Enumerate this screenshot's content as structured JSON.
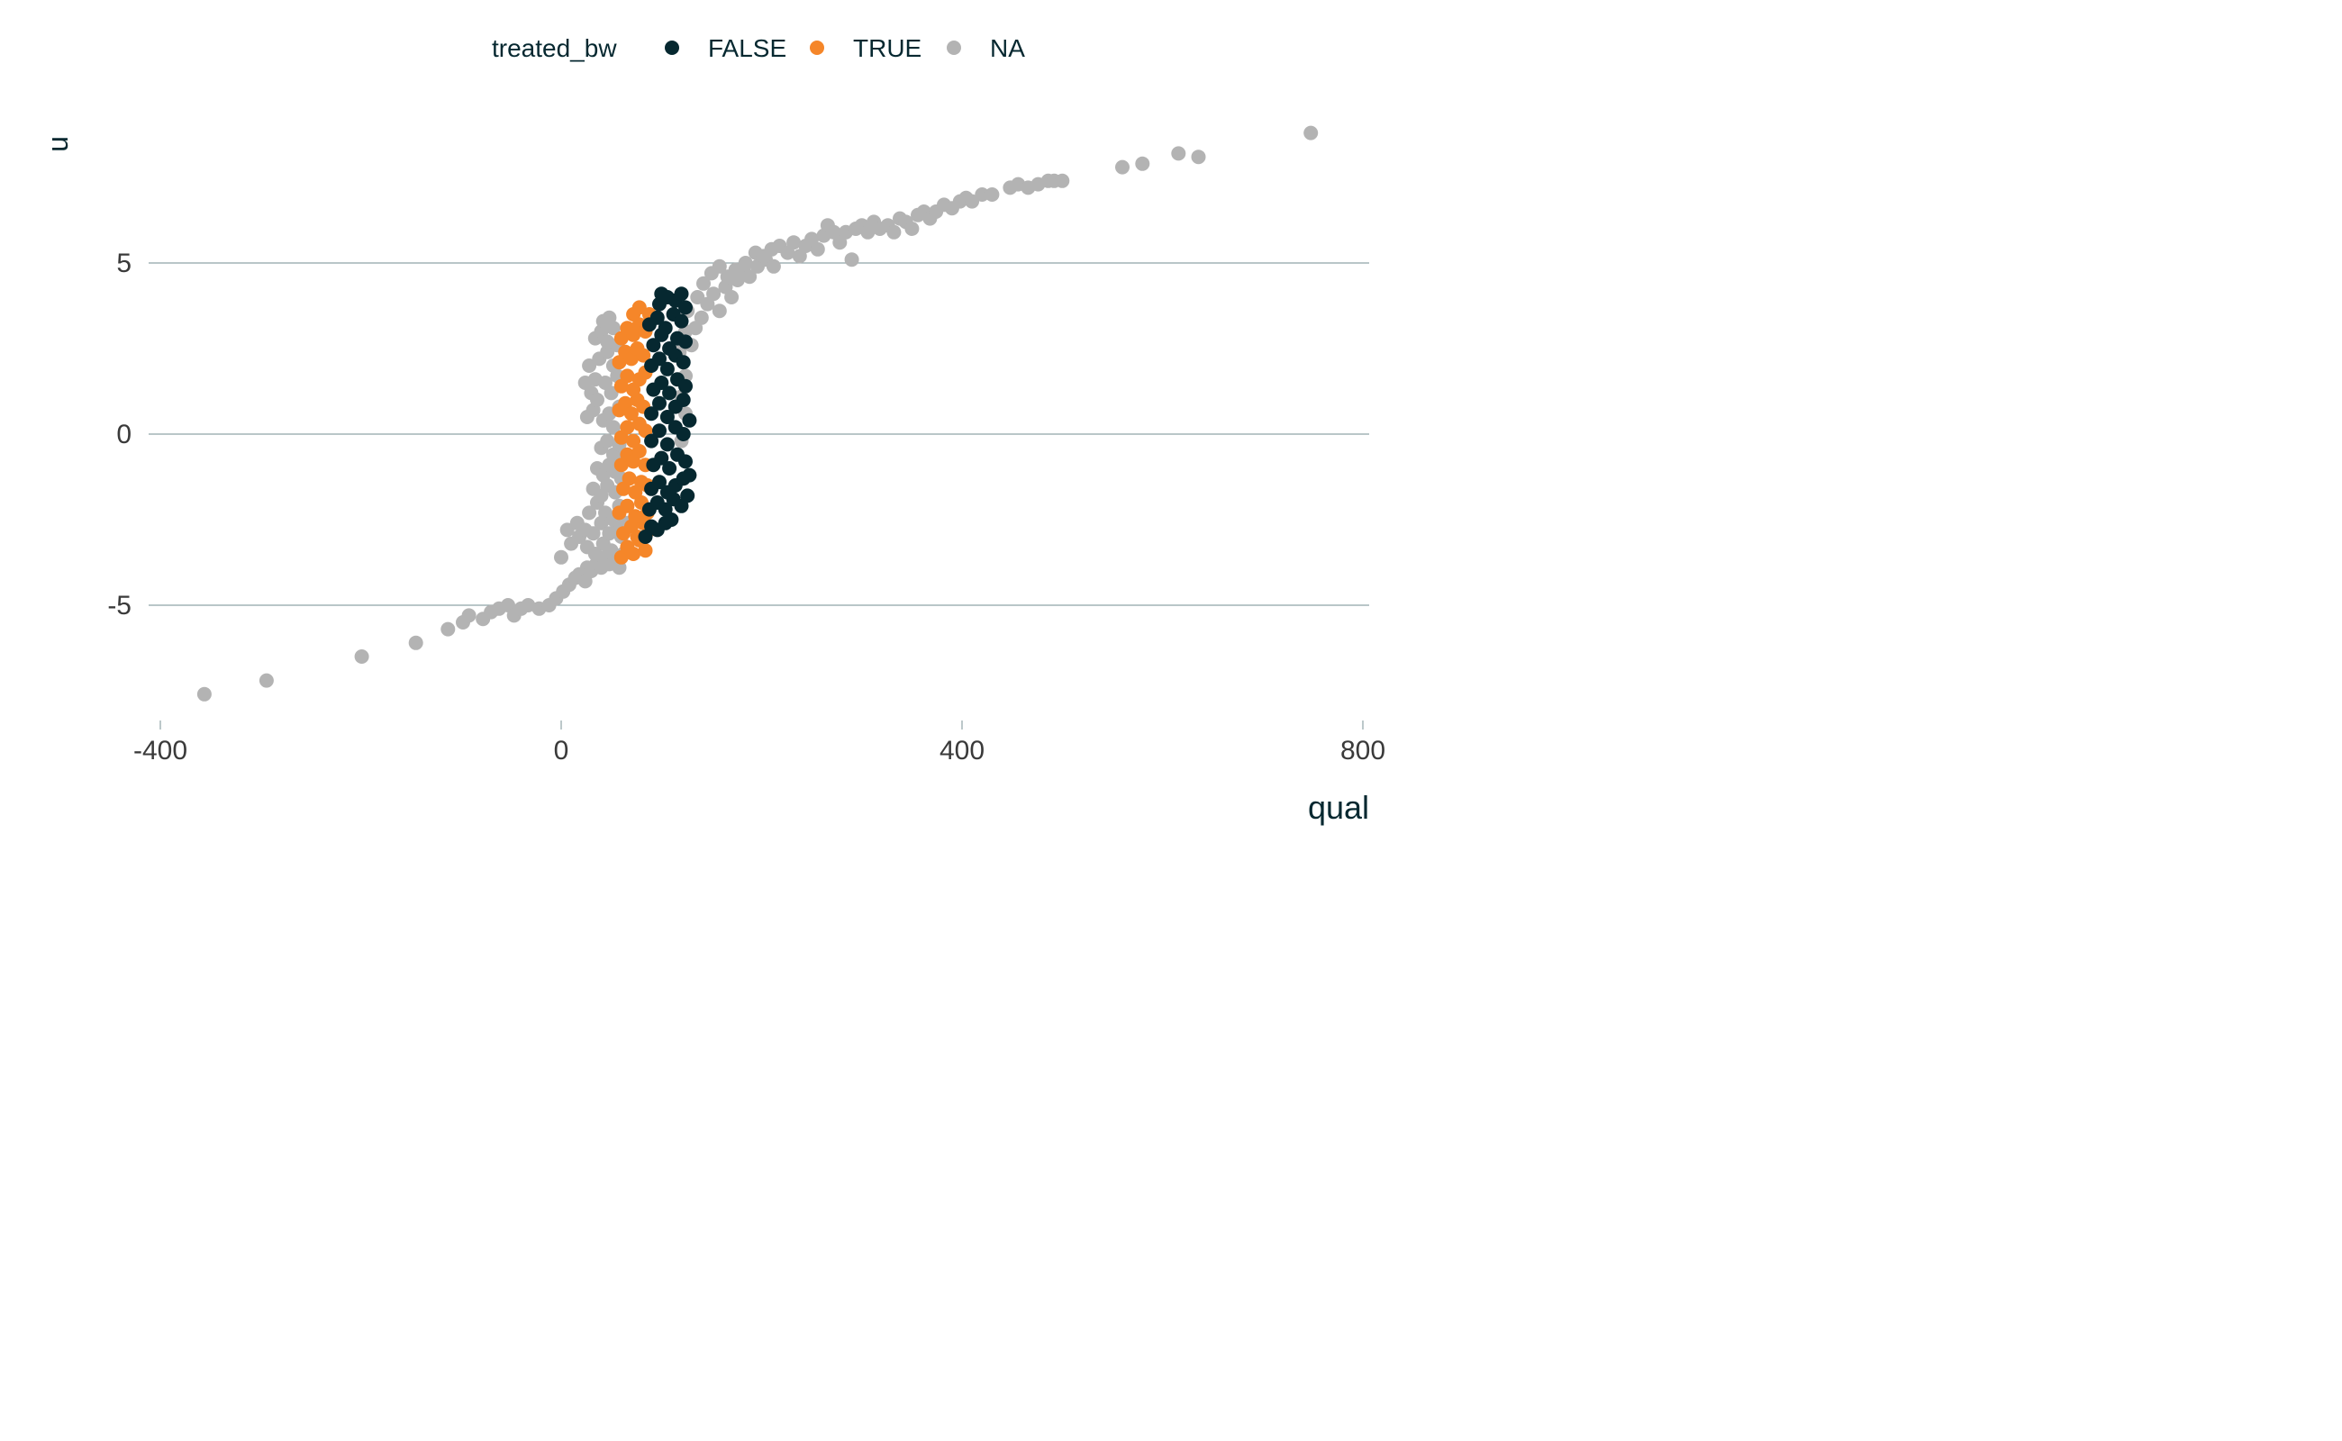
{
  "chart_data": {
    "type": "scatter",
    "title": "",
    "xlabel": "qual",
    "ylabel": "u",
    "xlim": [
      -400,
      800
    ],
    "ylim": [
      -7.5,
      8.5
    ],
    "x_ticks": [
      -400,
      0,
      400,
      800
    ],
    "y_ticks": [
      -5,
      0,
      5
    ],
    "x_tick_labels": [
      "-400",
      "0",
      "400",
      "800"
    ],
    "y_tick_labels": [
      "-5",
      "0",
      "5"
    ],
    "grid": "horizontal major",
    "legend": {
      "title": "treated_bw",
      "placement": "top",
      "entries": [
        {
          "label": "FALSE",
          "color": "#062830"
        },
        {
          "label": "TRUE",
          "color": "#f58629"
        },
        {
          "label": "NA",
          "color": "#b3b3b3"
        }
      ]
    },
    "series": [
      {
        "name": "NA",
        "color": "#b3b3b3",
        "points": [
          [
            -356,
            -7.6
          ],
          [
            -294,
            -7.2
          ],
          [
            -199,
            -6.5
          ],
          [
            -145,
            -6.1
          ],
          [
            -113,
            -5.7
          ],
          [
            -98,
            -5.5
          ],
          [
            -92,
            -5.3
          ],
          [
            -78,
            -5.4
          ],
          [
            -70,
            -5.2
          ],
          [
            -62,
            -5.1
          ],
          [
            -53,
            -5.0
          ],
          [
            -47,
            -5.3
          ],
          [
            -40,
            -5.1
          ],
          [
            -33,
            -5.0
          ],
          [
            -22,
            -5.1
          ],
          [
            -12,
            -5.0
          ],
          [
            -5,
            -4.8
          ],
          [
            2,
            -4.6
          ],
          [
            8,
            -4.4
          ],
          [
            14,
            -4.2
          ],
          [
            18,
            -4.1
          ],
          [
            24,
            -4.3
          ],
          [
            26,
            -3.9
          ],
          [
            30,
            -4.0
          ],
          [
            35,
            -3.8
          ],
          [
            40,
            -3.9
          ],
          [
            44,
            -3.6
          ],
          [
            48,
            -3.8
          ],
          [
            53,
            -3.7
          ],
          [
            58,
            -3.9
          ],
          [
            62,
            -3.5
          ],
          [
            0,
            -3.6
          ],
          [
            10,
            -3.2
          ],
          [
            18,
            -3.0
          ],
          [
            26,
            -3.3
          ],
          [
            34,
            -3.5
          ],
          [
            42,
            -3.2
          ],
          [
            50,
            -3.4
          ],
          [
            6,
            -2.8
          ],
          [
            16,
            -2.6
          ],
          [
            24,
            -2.8
          ],
          [
            32,
            -2.9
          ],
          [
            40,
            -2.6
          ],
          [
            48,
            -2.9
          ],
          [
            56,
            -2.7
          ],
          [
            60,
            -3.0
          ],
          [
            28,
            -2.3
          ],
          [
            36,
            -2.0
          ],
          [
            44,
            -2.3
          ],
          [
            52,
            -2.5
          ],
          [
            58,
            -2.1
          ],
          [
            66,
            -2.6
          ],
          [
            32,
            -1.6
          ],
          [
            40,
            -1.8
          ],
          [
            46,
            -1.5
          ],
          [
            54,
            -1.7
          ],
          [
            60,
            -1.3
          ],
          [
            36,
            -1.0
          ],
          [
            42,
            -1.2
          ],
          [
            48,
            -0.9
          ],
          [
            54,
            -1.1
          ],
          [
            58,
            -0.6
          ],
          [
            40,
            -0.4
          ],
          [
            46,
            -0.2
          ],
          [
            52,
            -0.6
          ],
          [
            58,
            -0.3
          ],
          [
            42,
            0.4
          ],
          [
            48,
            0.6
          ],
          [
            52,
            0.2
          ],
          [
            58,
            0.8
          ],
          [
            26,
            0.5
          ],
          [
            32,
            0.7
          ],
          [
            30,
            1.2
          ],
          [
            36,
            1.0
          ],
          [
            44,
            1.5
          ],
          [
            50,
            1.2
          ],
          [
            56,
            1.7
          ],
          [
            24,
            1.5
          ],
          [
            28,
            2.0
          ],
          [
            34,
            1.6
          ],
          [
            38,
            2.2
          ],
          [
            46,
            2.4
          ],
          [
            52,
            2.0
          ],
          [
            56,
            2.6
          ],
          [
            34,
            2.8
          ],
          [
            40,
            3.0
          ],
          [
            46,
            2.7
          ],
          [
            52,
            3.1
          ],
          [
            42,
            3.3
          ],
          [
            48,
            3.4
          ],
          [
            120,
            -0.2
          ],
          [
            124,
            0.6
          ],
          [
            120,
            1.1
          ],
          [
            124,
            1.7
          ],
          [
            118,
            2.4
          ],
          [
            124,
            3.0
          ],
          [
            126,
            3.6
          ],
          [
            130,
            2.6
          ],
          [
            134,
            3.1
          ],
          [
            140,
            3.4
          ],
          [
            146,
            3.8
          ],
          [
            152,
            4.1
          ],
          [
            158,
            3.6
          ],
          [
            164,
            4.3
          ],
          [
            170,
            4.0
          ],
          [
            176,
            4.5
          ],
          [
            182,
            4.8
          ],
          [
            188,
            4.6
          ],
          [
            196,
            4.9
          ],
          [
            204,
            5.1
          ],
          [
            212,
            4.9
          ],
          [
            136,
            4.0
          ],
          [
            142,
            4.4
          ],
          [
            150,
            4.7
          ],
          [
            158,
            4.9
          ],
          [
            166,
            4.6
          ],
          [
            174,
            4.8
          ],
          [
            184,
            5.0
          ],
          [
            194,
            5.3
          ],
          [
            202,
            5.2
          ],
          [
            210,
            5.4
          ],
          [
            218,
            5.5
          ],
          [
            226,
            5.3
          ],
          [
            232,
            5.6
          ],
          [
            238,
            5.2
          ],
          [
            244,
            5.5
          ],
          [
            250,
            5.7
          ],
          [
            256,
            5.4
          ],
          [
            262,
            5.8
          ],
          [
            266,
            6.1
          ],
          [
            272,
            5.9
          ],
          [
            278,
            5.6
          ],
          [
            284,
            5.9
          ],
          [
            290,
            5.1
          ],
          [
            294,
            6.0
          ],
          [
            300,
            6.1
          ],
          [
            306,
            5.9
          ],
          [
            312,
            6.2
          ],
          [
            318,
            6.0
          ],
          [
            326,
            6.1
          ],
          [
            332,
            5.9
          ],
          [
            338,
            6.3
          ],
          [
            344,
            6.2
          ],
          [
            350,
            6.0
          ],
          [
            356,
            6.4
          ],
          [
            362,
            6.5
          ],
          [
            368,
            6.3
          ],
          [
            374,
            6.5
          ],
          [
            382,
            6.7
          ],
          [
            390,
            6.6
          ],
          [
            398,
            6.8
          ],
          [
            404,
            6.9
          ],
          [
            410,
            6.8
          ],
          [
            420,
            7.0
          ],
          [
            430,
            7.0
          ],
          [
            448,
            7.2
          ],
          [
            456,
            7.3
          ],
          [
            466,
            7.2
          ],
          [
            476,
            7.3
          ],
          [
            486,
            7.4
          ],
          [
            492,
            7.4
          ],
          [
            500,
            7.4
          ],
          [
            560,
            7.8
          ],
          [
            580,
            7.9
          ],
          [
            616,
            8.2
          ],
          [
            636,
            8.1
          ],
          [
            748,
            8.8
          ]
        ]
      },
      {
        "name": "TRUE",
        "color": "#f58629",
        "points": [
          [
            60,
            -3.6
          ],
          [
            66,
            -3.3
          ],
          [
            72,
            -3.5
          ],
          [
            78,
            -3.1
          ],
          [
            84,
            -3.4
          ],
          [
            62,
            -2.9
          ],
          [
            70,
            -2.7
          ],
          [
            76,
            -3.0
          ],
          [
            82,
            -2.6
          ],
          [
            88,
            -2.8
          ],
          [
            58,
            -2.3
          ],
          [
            66,
            -2.1
          ],
          [
            74,
            -2.4
          ],
          [
            80,
            -2.0
          ],
          [
            86,
            -2.3
          ],
          [
            62,
            -1.6
          ],
          [
            68,
            -1.3
          ],
          [
            74,
            -1.7
          ],
          [
            80,
            -1.4
          ],
          [
            86,
            -1.5
          ],
          [
            60,
            -0.9
          ],
          [
            66,
            -0.6
          ],
          [
            72,
            -0.8
          ],
          [
            78,
            -0.5
          ],
          [
            84,
            -0.9
          ],
          [
            60,
            -0.1
          ],
          [
            66,
            0.2
          ],
          [
            72,
            -0.2
          ],
          [
            78,
            0.3
          ],
          [
            84,
            0.1
          ],
          [
            58,
            0.7
          ],
          [
            64,
            0.9
          ],
          [
            70,
            0.6
          ],
          [
            76,
            1.0
          ],
          [
            82,
            0.8
          ],
          [
            60,
            1.4
          ],
          [
            66,
            1.7
          ],
          [
            72,
            1.3
          ],
          [
            78,
            1.6
          ],
          [
            84,
            1.8
          ],
          [
            58,
            2.1
          ],
          [
            64,
            2.4
          ],
          [
            70,
            2.2
          ],
          [
            76,
            2.5
          ],
          [
            82,
            2.3
          ],
          [
            60,
            2.8
          ],
          [
            66,
            3.1
          ],
          [
            72,
            2.9
          ],
          [
            78,
            3.2
          ],
          [
            84,
            3.0
          ],
          [
            72,
            3.5
          ],
          [
            78,
            3.7
          ],
          [
            88,
            3.5
          ]
        ]
      },
      {
        "name": "FALSE",
        "color": "#062830",
        "points": [
          [
            84,
            -3.0
          ],
          [
            90,
            -2.7
          ],
          [
            96,
            -2.8
          ],
          [
            104,
            -2.6
          ],
          [
            110,
            -2.5
          ],
          [
            88,
            -2.2
          ],
          [
            96,
            -2.0
          ],
          [
            104,
            -2.2
          ],
          [
            112,
            -1.9
          ],
          [
            120,
            -2.1
          ],
          [
            90,
            -1.6
          ],
          [
            98,
            -1.4
          ],
          [
            106,
            -1.7
          ],
          [
            114,
            -1.5
          ],
          [
            122,
            -1.3
          ],
          [
            126,
            -1.8
          ],
          [
            128,
            -1.2
          ],
          [
            92,
            -0.9
          ],
          [
            100,
            -0.7
          ],
          [
            108,
            -1.0
          ],
          [
            116,
            -0.6
          ],
          [
            124,
            -0.8
          ],
          [
            90,
            -0.2
          ],
          [
            98,
            0.1
          ],
          [
            106,
            -0.3
          ],
          [
            114,
            0.2
          ],
          [
            122,
            0.0
          ],
          [
            128,
            0.4
          ],
          [
            90,
            0.6
          ],
          [
            98,
            0.9
          ],
          [
            106,
            0.5
          ],
          [
            114,
            0.8
          ],
          [
            122,
            1.0
          ],
          [
            92,
            1.3
          ],
          [
            100,
            1.5
          ],
          [
            108,
            1.2
          ],
          [
            116,
            1.6
          ],
          [
            124,
            1.4
          ],
          [
            90,
            2.0
          ],
          [
            98,
            2.2
          ],
          [
            106,
            1.9
          ],
          [
            114,
            2.3
          ],
          [
            122,
            2.1
          ],
          [
            92,
            2.6
          ],
          [
            100,
            2.9
          ],
          [
            108,
            2.5
          ],
          [
            116,
            2.8
          ],
          [
            124,
            2.7
          ],
          [
            88,
            3.2
          ],
          [
            96,
            3.4
          ],
          [
            104,
            3.1
          ],
          [
            112,
            3.5
          ],
          [
            120,
            3.3
          ],
          [
            98,
            3.8
          ],
          [
            106,
            4.0
          ],
          [
            114,
            3.9
          ],
          [
            120,
            4.1
          ],
          [
            124,
            3.7
          ],
          [
            100,
            4.1
          ]
        ]
      }
    ]
  }
}
